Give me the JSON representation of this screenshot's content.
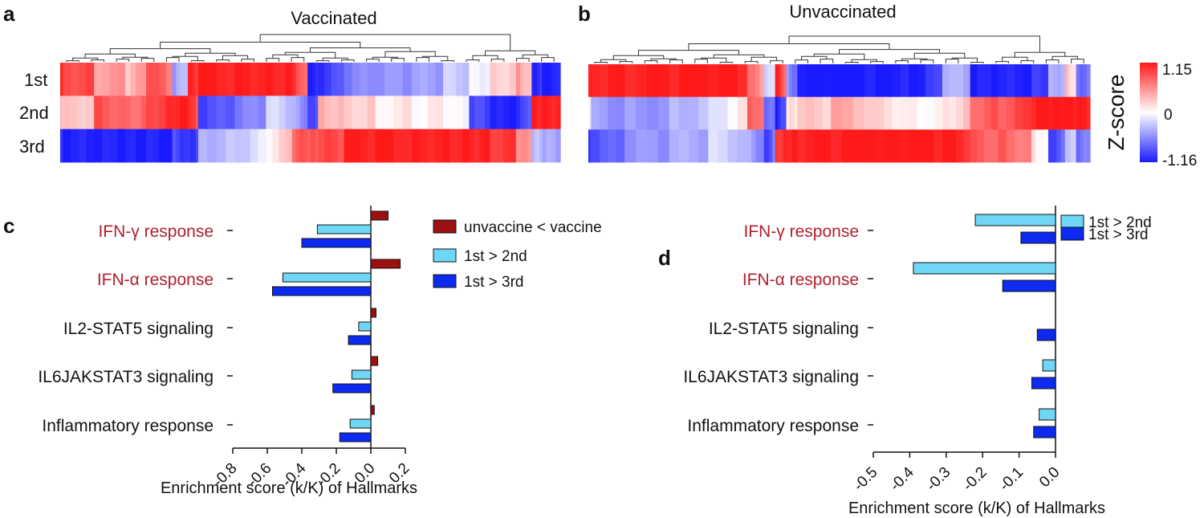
{
  "panel_labels": {
    "a": "a",
    "b": "b",
    "c": "c",
    "d": "d"
  },
  "colors": {
    "high": "#ff1a1a",
    "mid": "#ffffff",
    "low": "#1a1aff",
    "vacc": "#9b1111",
    "first_second": "#6fd6f6",
    "first_third": "#0d2af0",
    "highlight_label": "#b0202c",
    "text": "#111111"
  },
  "heatmap_a": {
    "title": "Vaccinated",
    "row_labels": [
      "1st",
      "2nd",
      "3rd"
    ]
  },
  "heatmap_b": {
    "title": "Unvaccinated"
  },
  "colorbar": {
    "title": "Z-score",
    "max_label": "1.15",
    "mid_label": "0",
    "min_label": "-1.16"
  },
  "chart_data": [
    {
      "type": "heatmap",
      "title": "Vaccinated",
      "rows": [
        "1st",
        "2nd",
        "3rd"
      ],
      "scale": [
        -1.16,
        1.15
      ],
      "segments": [
        {
          "w": 0.005,
          "z": [
            1.0,
            0.3,
            -0.9
          ]
        },
        {
          "w": 0.06,
          "z": [
            0.85,
            0.2,
            -1.0
          ]
        },
        {
          "w": 0.06,
          "z": [
            0.45,
            0.75,
            -1.0
          ]
        },
        {
          "w": 0.04,
          "z": [
            0.3,
            0.65,
            -1.0
          ]
        },
        {
          "w": 0.05,
          "z": [
            0.8,
            0.85,
            -1.0
          ]
        },
        {
          "w": 0.03,
          "z": [
            -0.5,
            1.0,
            -0.8
          ]
        },
        {
          "w": 0.02,
          "z": [
            0.9,
            1.0,
            -0.9
          ]
        },
        {
          "w": 0.07,
          "z": [
            1.0,
            -0.8,
            -0.3
          ]
        },
        {
          "w": 0.06,
          "z": [
            1.0,
            -0.6,
            -0.2
          ]
        },
        {
          "w": 0.05,
          "z": [
            1.0,
            -0.2,
            0.1
          ]
        },
        {
          "w": 0.03,
          "z": [
            0.95,
            -0.4,
            0.7
          ]
        },
        {
          "w": 0.02,
          "z": [
            -1.0,
            -0.9,
            0.7
          ]
        },
        {
          "w": 0.05,
          "z": [
            -0.85,
            0.35,
            0.75
          ]
        },
        {
          "w": 0.06,
          "z": [
            -0.55,
            0.25,
            1.0
          ]
        },
        {
          "w": 0.07,
          "z": [
            -0.5,
            0.1,
            1.0
          ]
        },
        {
          "w": 0.06,
          "z": [
            -0.45,
            0.05,
            1.0
          ]
        },
        {
          "w": 0.05,
          "z": [
            -0.25,
            0.05,
            1.0
          ]
        },
        {
          "w": 0.04,
          "z": [
            -0.05,
            -0.8,
            1.0
          ]
        },
        {
          "w": 0.05,
          "z": [
            0.2,
            -1.0,
            0.9
          ]
        },
        {
          "w": 0.03,
          "z": [
            0.5,
            -1.0,
            0.55
          ]
        },
        {
          "w": 0.02,
          "z": [
            -0.9,
            1.0,
            -0.3
          ]
        },
        {
          "w": 0.035,
          "z": [
            -1.0,
            1.0,
            -0.4
          ]
        }
      ]
    },
    {
      "type": "heatmap",
      "title": "Unvaccinated",
      "rows": [
        "1st",
        "2nd",
        "3rd"
      ],
      "scale": [
        -1.16,
        1.15
      ],
      "segments": [
        {
          "w": 0.005,
          "z": [
            1.0,
            0.0,
            -0.9
          ]
        },
        {
          "w": 0.06,
          "z": [
            1.0,
            -0.45,
            -0.75
          ]
        },
        {
          "w": 0.08,
          "z": [
            1.0,
            -0.45,
            -0.5
          ]
        },
        {
          "w": 0.07,
          "z": [
            1.0,
            -0.3,
            -0.4
          ]
        },
        {
          "w": 0.07,
          "z": [
            1.0,
            -0.1,
            -0.2
          ]
        },
        {
          "w": 0.03,
          "z": [
            0.6,
            0.8,
            -0.4
          ]
        },
        {
          "w": 0.02,
          "z": [
            -0.3,
            -0.6,
            -0.9
          ]
        },
        {
          "w": 0.02,
          "z": [
            1.0,
            -1.0,
            0.9
          ]
        },
        {
          "w": 0.02,
          "z": [
            -0.5,
            0.1,
            1.0
          ]
        },
        {
          "w": 0.06,
          "z": [
            -1.0,
            0.2,
            1.0
          ]
        },
        {
          "w": 0.08,
          "z": [
            -1.0,
            0.35,
            1.0
          ]
        },
        {
          "w": 0.06,
          "z": [
            -1.0,
            0.15,
            1.0
          ]
        },
        {
          "w": 0.06,
          "z": [
            -1.0,
            0.05,
            1.0
          ]
        },
        {
          "w": 0.05,
          "z": [
            -0.3,
            0.15,
            1.0
          ]
        },
        {
          "w": 0.05,
          "z": [
            -1.0,
            0.7,
            0.7
          ]
        },
        {
          "w": 0.06,
          "z": [
            -1.0,
            0.75,
            0.7
          ]
        },
        {
          "w": 0.03,
          "z": [
            -0.9,
            1.0,
            0.15
          ]
        },
        {
          "w": 0.03,
          "z": [
            -0.4,
            1.0,
            -0.8
          ]
        },
        {
          "w": 0.02,
          "z": [
            0.3,
            1.0,
            -0.2
          ]
        },
        {
          "w": 0.025,
          "z": [
            -0.6,
            1.0,
            -0.6
          ]
        }
      ]
    },
    {
      "type": "bar",
      "orientation": "horizontal",
      "categories": [
        "IFN-γ response",
        "IFN-α response",
        "IL2-STAT5 signaling",
        "IL6JAKSTAT3 signaling",
        "Inflammatory response"
      ],
      "highlighted": [
        true,
        true,
        false,
        false,
        false
      ],
      "series": [
        {
          "name": "unvaccine < vaccine",
          "values": [
            0.1,
            0.17,
            0.03,
            0.04,
            0.02
          ]
        },
        {
          "name": "1st > 2nd",
          "values": [
            -0.31,
            -0.51,
            -0.07,
            -0.11,
            -0.12
          ]
        },
        {
          "name": "1st > 3rd",
          "values": [
            -0.4,
            -0.57,
            -0.13,
            -0.22,
            -0.18
          ]
        }
      ],
      "xlim": [
        -0.8,
        0.2
      ],
      "ticks": [
        "-0.8",
        "-0.6",
        "-0.4",
        "-0.2",
        "0.0",
        "0.2"
      ],
      "tick_values": [
        -0.8,
        -0.6,
        -0.4,
        -0.2,
        0.0,
        0.2
      ],
      "xlabel": "Enrichment score (k/K) of Hallmarks",
      "legend": "top-right"
    },
    {
      "type": "bar",
      "orientation": "horizontal",
      "categories": [
        "IFN-γ response",
        "IFN-α response",
        "IL2-STAT5 signaling",
        "IL6JAKSTAT3 signaling",
        "Inflammatory response"
      ],
      "highlighted": [
        true,
        true,
        false,
        false,
        false
      ],
      "series": [
        {
          "name": "1st > 2nd",
          "values": [
            -0.22,
            -0.39,
            0.0,
            -0.035,
            -0.045
          ]
        },
        {
          "name": "1st > 3rd",
          "values": [
            -0.095,
            -0.145,
            -0.05,
            -0.065,
            -0.06
          ]
        }
      ],
      "xlim": [
        -0.5,
        0.0
      ],
      "ticks": [
        "-0.5",
        "-0.4",
        "-0.3",
        "-0.2",
        "-0.1",
        "0.0"
      ],
      "tick_values": [
        -0.5,
        -0.4,
        -0.3,
        -0.2,
        -0.1,
        0.0
      ],
      "xlabel": "Enrichment score (k/K) of Hallmarks",
      "legend": "top-right"
    }
  ]
}
